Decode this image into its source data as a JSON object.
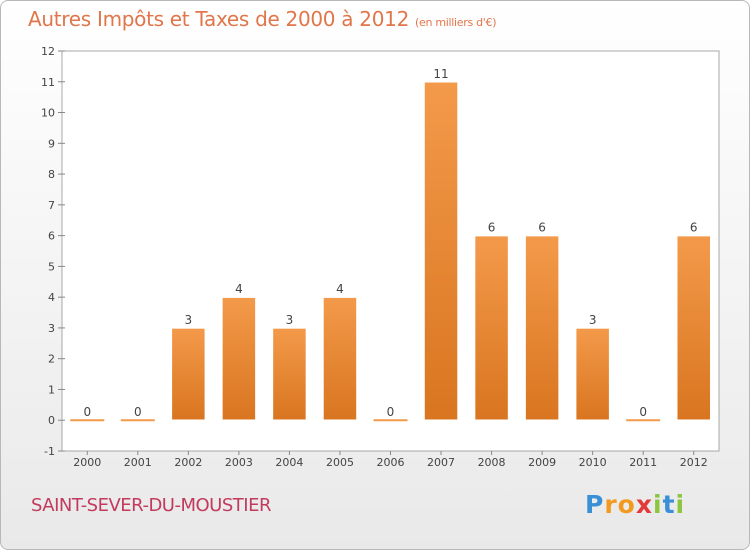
{
  "title": "Autres Impôts et Taxes de 2000 à 2012",
  "unit": "(en milliers d'€)",
  "commune": "SAINT-SEVER-DU-MOUSTIER",
  "logo": {
    "letters": [
      "P",
      "r",
      "o",
      "x",
      "i",
      "t",
      "i"
    ],
    "colors": [
      "#3a8fd6",
      "#f29a1f",
      "#f29a1f",
      "#e23a3a",
      "#8cc63f",
      "#3a8fd6",
      "#8cc63f"
    ]
  },
  "colors": {
    "bar": "#f39a4a",
    "bar_dark": "#d97520",
    "title": "#e0764a",
    "commune": "#c23a5c"
  },
  "chart_data": {
    "type": "bar",
    "title": "Autres Impôts et Taxes de 2000 à 2012",
    "ylabel": "(en milliers d'€)",
    "categories": [
      "2000",
      "2001",
      "2002",
      "2003",
      "2004",
      "2005",
      "2006",
      "2007",
      "2008",
      "2009",
      "2010",
      "2011",
      "2012"
    ],
    "values": [
      0,
      0,
      3,
      4,
      3,
      4,
      0,
      11,
      6,
      6,
      3,
      0,
      6
    ],
    "data_labels": [
      "0",
      "0",
      "3",
      "4",
      "3",
      "4",
      "0",
      "11",
      "6",
      "6",
      "3",
      "0",
      "6"
    ],
    "ylim": [
      -1,
      12
    ],
    "yticks": [
      "-1",
      "0",
      "1",
      "2",
      "3",
      "4",
      "5",
      "6",
      "7",
      "8",
      "9",
      "10",
      "11",
      "12"
    ],
    "grid": false,
    "legend": "none"
  }
}
